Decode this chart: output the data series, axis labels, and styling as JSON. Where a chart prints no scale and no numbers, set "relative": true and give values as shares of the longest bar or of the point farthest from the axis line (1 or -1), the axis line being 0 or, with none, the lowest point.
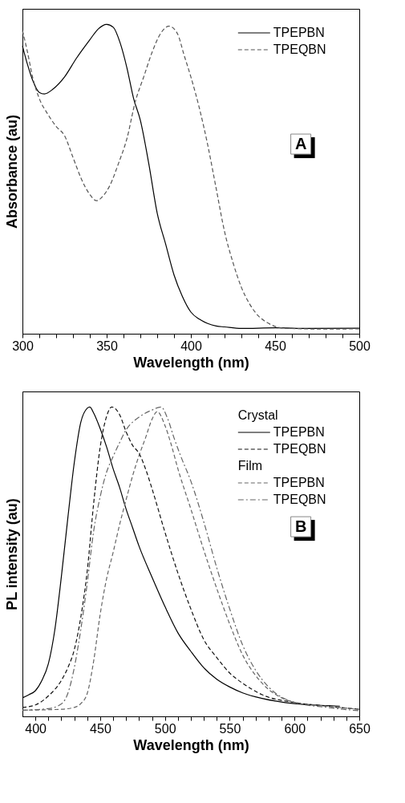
{
  "chart_data": [
    {
      "type": "line",
      "relative": true,
      "xlabel": "Wavelength (nm)",
      "ylabel": "Absorbance (au)",
      "tick_labels": "x",
      "legend": "top right",
      "grid": false,
      "xlim": [
        300,
        500
      ],
      "xticks": [
        300,
        {
          "value": 310,
          "label": null
        },
        {
          "value": 320,
          "label": null
        },
        {
          "value": 330,
          "label": null
        },
        {
          "value": 340,
          "label": null
        },
        350,
        {
          "value": 360,
          "label": null
        },
        {
          "value": 370,
          "label": null
        },
        {
          "value": 380,
          "label": null
        },
        {
          "value": 390,
          "label": null
        },
        400,
        {
          "value": 410,
          "label": null
        },
        {
          "value": 420,
          "label": null
        },
        {
          "value": 430,
          "label": null
        },
        {
          "value": 440,
          "label": null
        },
        450,
        {
          "value": 460,
          "label": null
        },
        {
          "value": 470,
          "label": null
        },
        {
          "value": 480,
          "label": null
        },
        {
          "value": 490,
          "label": null
        },
        500
      ],
      "annotations": [
        "A"
      ],
      "series": [
        {
          "name": "TPEPBN",
          "color": "#000000",
          "line_style": "solid",
          "x": [
            300,
            303,
            306,
            310,
            313,
            318,
            325,
            332,
            340,
            345,
            350,
            354,
            358,
            362,
            366,
            370,
            375,
            380,
            385,
            390,
            395,
            400,
            405,
            410,
            415,
            420,
            430,
            450,
            470,
            500
          ],
          "values": [
            0.93,
            0.87,
            0.82,
            0.78,
            0.775,
            0.79,
            0.83,
            0.89,
            0.95,
            0.985,
            1.0,
            0.99,
            0.94,
            0.86,
            0.76,
            0.69,
            0.55,
            0.39,
            0.29,
            0.19,
            0.12,
            0.07,
            0.047,
            0.033,
            0.025,
            0.022,
            0.017,
            0.019,
            0.017,
            0.018
          ]
        },
        {
          "name": "TPEQBN",
          "color": "#555555",
          "line_style": "dashed",
          "x": [
            300,
            303,
            306,
            310,
            315,
            320,
            325,
            330,
            335,
            340,
            344,
            348,
            352,
            357,
            362,
            367,
            372,
            377,
            382,
            387,
            392,
            396,
            400,
            405,
            410,
            415,
            420,
            425,
            430,
            435,
            440,
            445,
            455,
            480,
            500
          ],
          "values": [
            0.98,
            0.91,
            0.83,
            0.76,
            0.71,
            0.67,
            0.64,
            0.57,
            0.5,
            0.45,
            0.43,
            0.446,
            0.48,
            0.55,
            0.63,
            0.75,
            0.83,
            0.91,
            0.97,
            0.994,
            0.97,
            0.9,
            0.83,
            0.73,
            0.61,
            0.47,
            0.33,
            0.23,
            0.15,
            0.095,
            0.058,
            0.037,
            0.018,
            0.015,
            0.016
          ]
        }
      ]
    },
    {
      "type": "line",
      "relative": true,
      "xlabel": "Wavelength (nm)",
      "ylabel": "PL intensity (au)",
      "tick_labels": "x",
      "legend": "top right",
      "grid": false,
      "xlim": [
        390,
        650
      ],
      "xticks": [
        400,
        {
          "value": 410,
          "label": null
        },
        {
          "value": 420,
          "label": null
        },
        {
          "value": 430,
          "label": null
        },
        {
          "value": 440,
          "label": null
        },
        450,
        {
          "value": 460,
          "label": null
        },
        {
          "value": 470,
          "label": null
        },
        {
          "value": 480,
          "label": null
        },
        {
          "value": 490,
          "label": null
        },
        500,
        {
          "value": 510,
          "label": null
        },
        {
          "value": 520,
          "label": null
        },
        {
          "value": 530,
          "label": null
        },
        {
          "value": 540,
          "label": null
        },
        550,
        {
          "value": 560,
          "label": null
        },
        {
          "value": 570,
          "label": null
        },
        {
          "value": 580,
          "label": null
        },
        {
          "value": 590,
          "label": null
        },
        600,
        {
          "value": 610,
          "label": null
        },
        {
          "value": 620,
          "label": null
        },
        {
          "value": 630,
          "label": null
        },
        {
          "value": 640,
          "label": null
        },
        650
      ],
      "annotations": [
        "Crystal",
        "Film",
        "B"
      ],
      "series": [
        {
          "name": "TPEPBN",
          "color": "#000000",
          "line_style": "solid",
          "x": [
            390,
            395,
            400,
            405,
            410,
            415,
            420,
            425,
            430,
            435,
            440,
            442,
            445,
            450,
            455,
            460,
            465,
            470,
            475,
            480,
            490,
            500,
            510,
            520,
            530,
            540,
            550,
            560,
            575,
            600,
            625,
            635
          ],
          "values": [
            0.06,
            0.07,
            0.083,
            0.116,
            0.17,
            0.28,
            0.45,
            0.64,
            0.82,
            0.95,
            0.996,
            1.0,
            0.98,
            0.93,
            0.87,
            0.8,
            0.74,
            0.67,
            0.61,
            0.55,
            0.45,
            0.355,
            0.27,
            0.21,
            0.157,
            0.12,
            0.095,
            0.076,
            0.058,
            0.041,
            0.035,
            0.033
          ]
        },
        {
          "name": "TPEQBN",
          "color": "#111111",
          "line_style": "dashed",
          "x": [
            390,
            400,
            410,
            420,
            425,
            430,
            435,
            440,
            445,
            450,
            455,
            459,
            465,
            470,
            475,
            480,
            485,
            490,
            500,
            510,
            520,
            530,
            540,
            550,
            560,
            575,
            600,
            625,
            650
          ],
          "values": [
            0.029,
            0.037,
            0.066,
            0.116,
            0.157,
            0.215,
            0.32,
            0.47,
            0.69,
            0.87,
            0.97,
            1.0,
            0.975,
            0.92,
            0.876,
            0.85,
            0.8,
            0.736,
            0.595,
            0.463,
            0.347,
            0.248,
            0.19,
            0.14,
            0.107,
            0.07,
            0.045,
            0.033,
            0.023
          ]
        },
        {
          "name": "TPEPBN",
          "color": "#666666",
          "line_style": "dashed",
          "x": [
            390,
            420,
            430,
            435,
            440,
            445,
            450,
            455,
            460,
            465,
            470,
            475,
            480,
            485,
            490,
            494,
            500,
            505,
            510,
            520,
            530,
            540,
            550,
            560,
            570,
            580,
            590,
            600,
            625,
            650
          ],
          "values": [
            0.02,
            0.023,
            0.029,
            0.041,
            0.074,
            0.18,
            0.33,
            0.446,
            0.53,
            0.62,
            0.7,
            0.777,
            0.843,
            0.9,
            0.96,
            0.985,
            0.94,
            0.876,
            0.8,
            0.67,
            0.537,
            0.413,
            0.298,
            0.198,
            0.132,
            0.087,
            0.06,
            0.045,
            0.033,
            0.023
          ]
        },
        {
          "name": "TPEQBN",
          "color": "#666666",
          "line_style": "dashdot",
          "x": [
            390,
            410,
            420,
            425,
            430,
            435,
            440,
            445,
            450,
            455,
            460,
            465,
            470,
            480,
            490,
            497,
            502,
            507,
            512,
            520,
            530,
            540,
            550,
            560,
            570,
            580,
            590,
            600,
            625,
            650
          ],
          "values": [
            0.02,
            0.025,
            0.04,
            0.074,
            0.157,
            0.28,
            0.43,
            0.6,
            0.71,
            0.79,
            0.84,
            0.885,
            0.926,
            0.967,
            0.99,
            1.0,
            0.963,
            0.9,
            0.843,
            0.76,
            0.628,
            0.48,
            0.347,
            0.23,
            0.149,
            0.095,
            0.062,
            0.045,
            0.029,
            0.018
          ]
        }
      ]
    }
  ]
}
